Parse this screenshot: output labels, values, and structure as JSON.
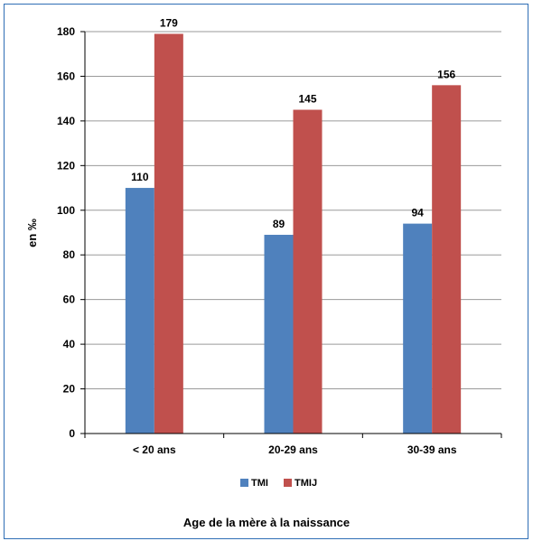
{
  "chart_data": {
    "type": "bar",
    "title": "",
    "xlabel": "Age de la mère à la naissance",
    "ylabel": "en ‰",
    "categories": [
      "< 20 ans",
      "20-29 ans",
      "30-39 ans"
    ],
    "series": [
      {
        "name": "TMI",
        "values": [
          110,
          89,
          94
        ],
        "color": "#4f81bd"
      },
      {
        "name": "TMIJ",
        "values": [
          179,
          145,
          156
        ],
        "color": "#c0504d"
      }
    ],
    "ylim": [
      0,
      180
    ],
    "yticks": [
      "0",
      "20",
      "40",
      "60",
      "80",
      "100",
      "120",
      "140",
      "160",
      "180"
    ],
    "grid": true,
    "legend_position": "bottom"
  }
}
